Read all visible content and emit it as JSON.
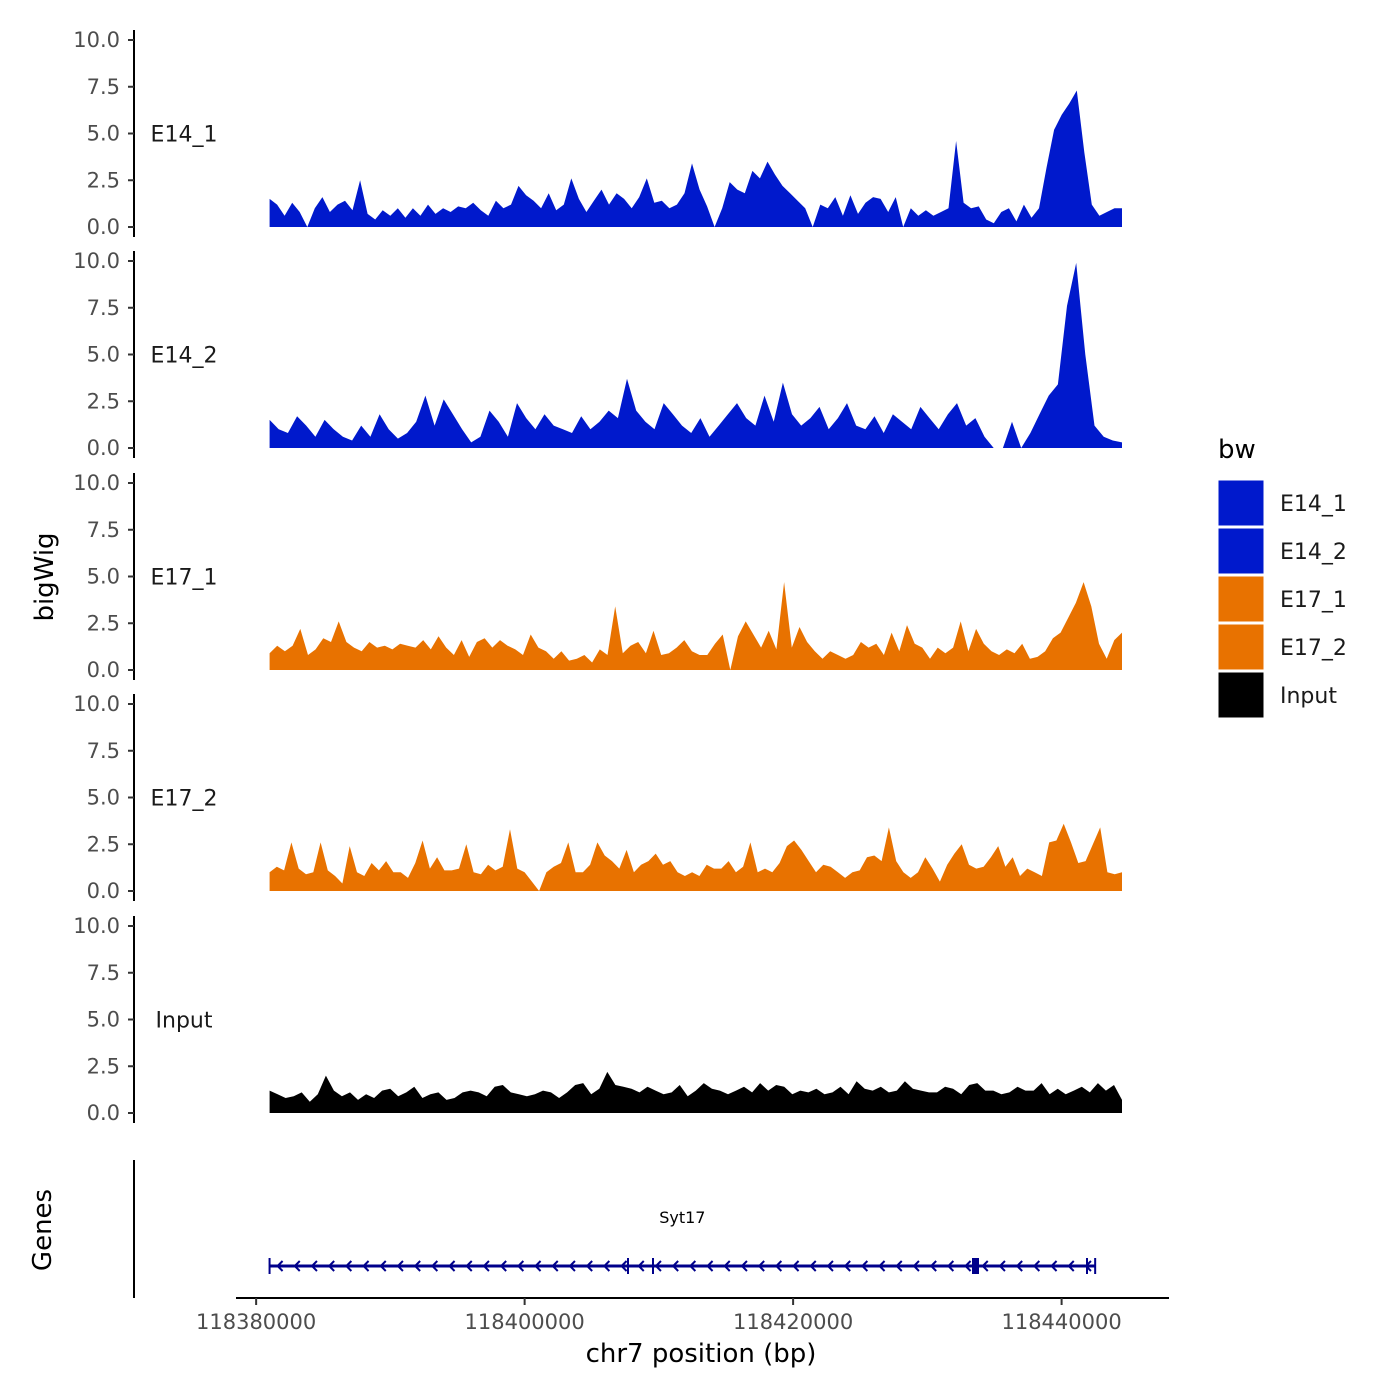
{
  "chart_data": {
    "type": "area",
    "title": "",
    "ylabel": "bigWig",
    "xlabel": "chr7 position (bp)",
    "xlim": [
      118378500,
      118448000
    ],
    "ylim": [
      0,
      10
    ],
    "x_ticks": [
      118380000,
      118400000,
      118420000,
      118440000
    ],
    "x_tick_labels": [
      "118380000",
      "118400000",
      "118420000",
      "118440000"
    ],
    "y_ticks": [
      0,
      2.5,
      5,
      7.5,
      10
    ],
    "y_tick_labels": [
      "0.0",
      "2.5",
      "5.0",
      "7.5",
      "10.0"
    ],
    "x_start": 118381000,
    "x_end": 118444500,
    "legend": {
      "title": "bw",
      "position": "right",
      "entries": [
        {
          "name": "E14_1",
          "color": "#0019CC"
        },
        {
          "name": "E14_2",
          "color": "#0019CC"
        },
        {
          "name": "E17_1",
          "color": "#E87200"
        },
        {
          "name": "E17_2",
          "color": "#E87200"
        },
        {
          "name": "Input",
          "color": "#000000"
        }
      ]
    },
    "series": [
      {
        "name": "E14_1",
        "label": "E14_1",
        "color": "#0019CC",
        "values": [
          1.5,
          1.2,
          0.6,
          1.3,
          0.8,
          0,
          1.0,
          1.6,
          0.8,
          1.2,
          1.4,
          0.9,
          2.5,
          0.7,
          0.4,
          0.9,
          0.6,
          1.0,
          0.5,
          1.0,
          0.6,
          1.2,
          0.7,
          1.0,
          0.8,
          1.1,
          1.0,
          1.3,
          0.9,
          0.6,
          1.4,
          1.0,
          1.2,
          2.2,
          1.7,
          1.4,
          1.0,
          1.8,
          0.9,
          1.2,
          2.6,
          1.5,
          0.8,
          1.4,
          2.0,
          1.2,
          1.8,
          1.5,
          1.0,
          1.6,
          2.6,
          1.3,
          1.4,
          1.0,
          1.2,
          1.8,
          3.4,
          2.0,
          1.1,
          0,
          1.0,
          2.4,
          2.0,
          1.8,
          3.0,
          2.6,
          3.5,
          2.8,
          2.2,
          1.8,
          1.4,
          1.0,
          0,
          1.2,
          1.0,
          1.6,
          0.6,
          1.7,
          0.7,
          1.3,
          1.6,
          1.5,
          0.8,
          1.6,
          0,
          1.0,
          0.6,
          0.9,
          0.6,
          0.8,
          1.0,
          4.6,
          1.3,
          1.0,
          1.1,
          0.4,
          0.2,
          0.8,
          1.0,
          0.3,
          1.2,
          0.5,
          1.0,
          3.2,
          5.2,
          6.0,
          6.6,
          7.3,
          4.0,
          1.2,
          0.6,
          0.8,
          1.0,
          1.0
        ]
      },
      {
        "name": "E14_2",
        "label": "E14_2",
        "color": "#0019CC",
        "values": [
          1.5,
          1.0,
          0.8,
          1.7,
          1.2,
          0.6,
          1.5,
          1.0,
          0.6,
          0.4,
          1.2,
          0.6,
          1.8,
          1.0,
          0.5,
          0.8,
          1.4,
          2.8,
          1.2,
          2.6,
          1.8,
          1.0,
          0.3,
          0.6,
          2.0,
          1.4,
          0.6,
          2.4,
          1.6,
          1.0,
          1.8,
          1.2,
          1.0,
          0.8,
          1.7,
          1.0,
          1.4,
          2.0,
          1.6,
          3.7,
          2.0,
          1.4,
          1.0,
          2.4,
          1.8,
          1.2,
          0.8,
          1.6,
          0.6,
          1.2,
          1.8,
          2.4,
          1.6,
          1.2,
          2.8,
          1.4,
          3.5,
          1.8,
          1.2,
          1.6,
          2.2,
          1.0,
          1.6,
          2.4,
          1.2,
          1.0,
          1.7,
          0.8,
          1.8,
          1.4,
          1.0,
          2.2,
          1.6,
          1.0,
          1.8,
          2.4,
          1.2,
          1.6,
          0.6,
          0,
          0,
          1.4,
          0,
          0.8,
          1.8,
          2.8,
          3.4,
          7.6,
          9.9,
          5.0,
          1.2,
          0.6,
          0.4,
          0.3
        ]
      },
      {
        "name": "E17_1",
        "label": "E17_1",
        "color": "#E87200",
        "values": [
          0.9,
          1.3,
          1.0,
          1.3,
          2.2,
          0.8,
          1.1,
          1.7,
          1.5,
          2.6,
          1.5,
          1.2,
          1.0,
          1.5,
          1.2,
          1.3,
          1.1,
          1.4,
          1.3,
          1.2,
          1.6,
          1.1,
          1.8,
          1.2,
          0.8,
          1.6,
          0.7,
          1.5,
          1.7,
          1.2,
          1.6,
          1.3,
          1.1,
          0.8,
          1.9,
          1.2,
          1.0,
          0.6,
          1.0,
          0.5,
          0.6,
          0.8,
          0.4,
          1.1,
          0.8,
          3.4,
          0.9,
          1.3,
          1.5,
          0.9,
          2.1,
          0.8,
          0.9,
          1.2,
          1.6,
          1.0,
          0.8,
          0.8,
          1.4,
          1.9,
          0,
          1.8,
          2.6,
          1.9,
          1.2,
          2.1,
          1.1,
          4.7,
          1.2,
          2.3,
          1.5,
          1.0,
          0.6,
          1.0,
          0.8,
          0.6,
          0.8,
          1.5,
          1.2,
          1.4,
          0.8,
          2.0,
          1.0,
          2.4,
          1.4,
          1.2,
          0.6,
          1.2,
          0.9,
          1.2,
          2.6,
          1.0,
          2.2,
          1.4,
          1.0,
          0.8,
          1.1,
          0.9,
          1.4,
          0.6,
          0.7,
          1.0,
          1.7,
          2.0,
          2.8,
          3.6,
          4.7,
          3.4,
          1.4,
          0.6,
          1.6,
          2.0
        ]
      },
      {
        "name": "E17_2",
        "label": "E17_2",
        "color": "#E87200",
        "values": [
          1.0,
          1.3,
          1.1,
          2.6,
          1.2,
          0.9,
          1.0,
          2.6,
          1.1,
          0.8,
          0.4,
          2.4,
          1.0,
          0.8,
          1.5,
          1.1,
          1.6,
          1.0,
          1.0,
          0.7,
          1.5,
          2.7,
          1.2,
          1.8,
          1.1,
          1.1,
          1.2,
          2.5,
          1.0,
          0.9,
          1.4,
          1.1,
          1.3,
          3.3,
          1.2,
          1.0,
          0.5,
          0,
          1.0,
          1.3,
          1.5,
          2.6,
          1.0,
          1.0,
          1.4,
          2.6,
          1.9,
          1.6,
          1.2,
          2.2,
          1.0,
          1.4,
          1.6,
          2.0,
          1.4,
          1.6,
          1.0,
          0.8,
          1.0,
          0.8,
          1.4,
          1.2,
          1.2,
          1.6,
          1.0,
          1.3,
          2.6,
          1.0,
          1.2,
          1.0,
          1.5,
          2.4,
          2.7,
          2.2,
          1.6,
          1.0,
          1.4,
          1.3,
          1.0,
          0.7,
          1.0,
          1.1,
          1.8,
          1.9,
          1.6,
          3.4,
          1.6,
          1.0,
          0.7,
          1.0,
          1.8,
          1.2,
          0.5,
          1.4,
          2.0,
          2.5,
          1.4,
          1.2,
          1.3,
          1.8,
          2.4,
          1.3,
          1.8,
          0.8,
          1.2,
          1.0,
          0.8,
          2.6,
          2.7,
          3.6,
          2.6,
          1.5,
          1.6,
          2.5,
          3.4,
          1.0,
          0.9,
          1.0
        ]
      },
      {
        "name": "Input",
        "label": "Input",
        "color": "#000000",
        "values": [
          1.2,
          1.0,
          0.8,
          0.9,
          1.1,
          0.6,
          1.0,
          2.0,
          1.2,
          0.9,
          1.1,
          0.7,
          1.0,
          0.8,
          1.2,
          1.3,
          0.9,
          1.1,
          1.4,
          0.8,
          1.0,
          1.1,
          0.7,
          0.8,
          1.1,
          1.2,
          1.1,
          0.9,
          1.4,
          1.5,
          1.1,
          1.0,
          0.9,
          1.0,
          1.2,
          1.1,
          0.8,
          1.1,
          1.5,
          1.6,
          1.0,
          1.3,
          2.2,
          1.5,
          1.4,
          1.3,
          1.1,
          1.4,
          1.2,
          1.0,
          1.1,
          1.5,
          0.9,
          1.2,
          1.6,
          1.3,
          1.2,
          1.0,
          1.2,
          1.4,
          1.1,
          1.6,
          1.2,
          1.5,
          1.4,
          1.0,
          1.2,
          1.1,
          1.3,
          1.0,
          1.1,
          1.4,
          1.0,
          1.7,
          1.3,
          1.2,
          1.4,
          1.1,
          1.2,
          1.7,
          1.3,
          1.2,
          1.1,
          1.1,
          1.4,
          1.3,
          1.0,
          1.5,
          1.6,
          1.2,
          1.2,
          1.0,
          1.1,
          1.4,
          1.2,
          1.2,
          1.6,
          1.0,
          1.3,
          1.0,
          1.2,
          1.4,
          1.1,
          1.6,
          1.2,
          1.5,
          0.7
        ]
      }
    ],
    "genes": {
      "label": "Genes",
      "items": [
        {
          "name": "Syt17",
          "strand": "-",
          "start": 118381000,
          "end": 118442500,
          "color": "#00008B"
        }
      ]
    }
  }
}
